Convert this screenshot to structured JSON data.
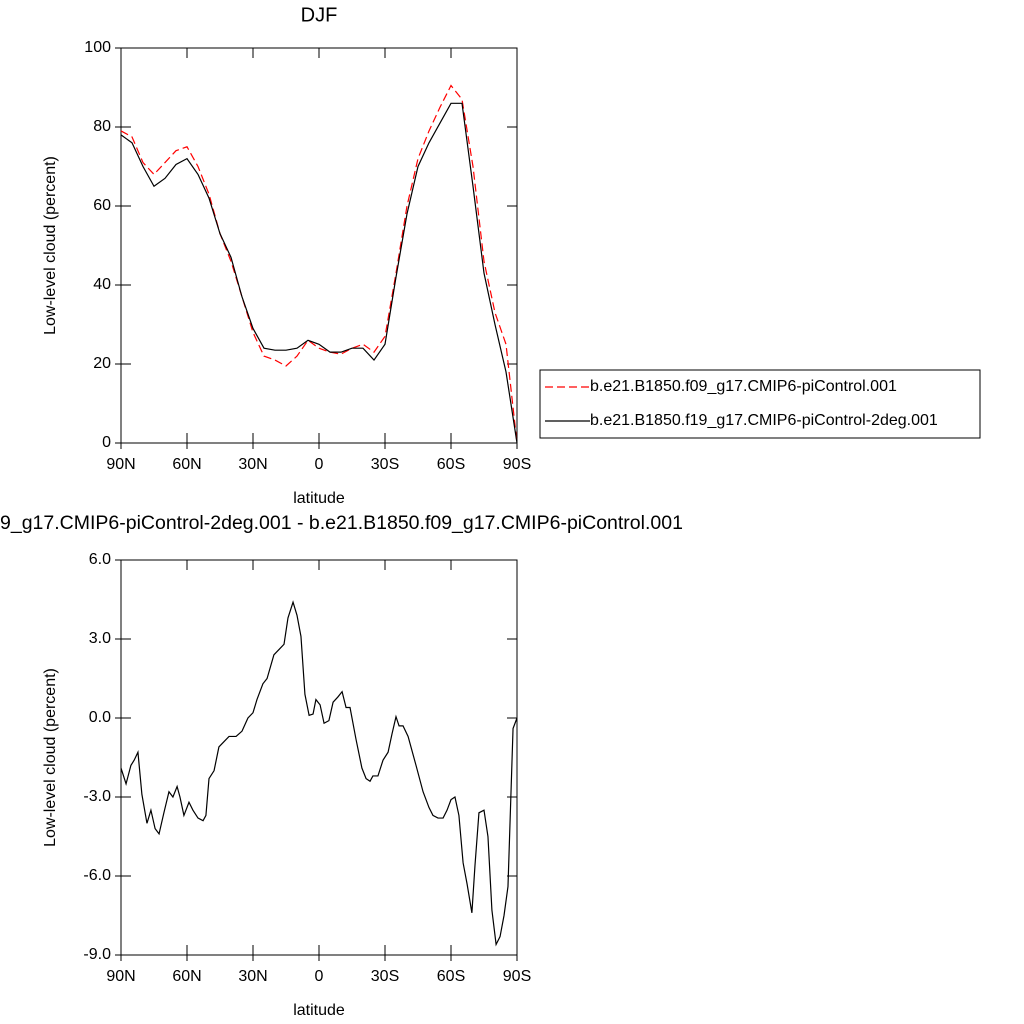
{
  "chart_data": [
    {
      "type": "line",
      "title": "DJF",
      "x_label": "latitude",
      "y_label": "Low-level cloud (percent)",
      "x": [
        90,
        85,
        80,
        75,
        70,
        65,
        60,
        55,
        50,
        45,
        40,
        35,
        30,
        25,
        20,
        15,
        10,
        5,
        0,
        -5,
        -10,
        -15,
        -20,
        -25,
        -30,
        -35,
        -40,
        -45,
        -50,
        -55,
        -60,
        -65,
        -70,
        -75,
        -80,
        -85,
        -90
      ],
      "series": [
        {
          "name": "b.e21.B1850.f09_g17.CMIP6-piControl.001",
          "color": "#ff0000",
          "linestyle": "dashed",
          "values": [
            79,
            77.5,
            71,
            68,
            71,
            74,
            75,
            70,
            63,
            53,
            46,
            37,
            28,
            22,
            21,
            19.5,
            22,
            26,
            24,
            23,
            22.5,
            24,
            25,
            23,
            27,
            43,
            60,
            72,
            79,
            85,
            90.5,
            87,
            70,
            46,
            33,
            25,
            0
          ]
        },
        {
          "name": "b.e21.B1850.f19_g17.CMIP6-piControl-2deg.001",
          "color": "#000000",
          "linestyle": "solid",
          "values": [
            78,
            76,
            70,
            65,
            67,
            70.5,
            72,
            68,
            62,
            53,
            47,
            37,
            29,
            24,
            23.5,
            23.5,
            24,
            26,
            25,
            23,
            23,
            24,
            24,
            21,
            25,
            42,
            58,
            70,
            76,
            81,
            86,
            86,
            65,
            43,
            30,
            18,
            0
          ]
        }
      ],
      "xlim": [
        90,
        -90
      ],
      "xticks": [
        {
          "value": 90,
          "label": "90N"
        },
        {
          "value": 60,
          "label": "60N"
        },
        {
          "value": 30,
          "label": "30N"
        },
        0,
        {
          "value": -30,
          "label": "30S"
        },
        {
          "value": -60,
          "label": "60S"
        },
        {
          "value": -90,
          "label": "90S"
        }
      ],
      "ylim": [
        0,
        100
      ],
      "yticks": [
        0,
        20,
        40,
        60,
        80,
        100
      ],
      "legend": "right"
    },
    {
      "type": "line",
      "title": "9_g17.CMIP6-piControl-2deg.001 - b.e21.B1850.f09_g17.CMIP6-piControl.001",
      "x_label": "latitude",
      "y_label": "Low-level cloud (percent)",
      "x": [
        90,
        87.7,
        85.5,
        84,
        82.3,
        80.5,
        78.2,
        76.4,
        74.5,
        72.7,
        70.5,
        68.2,
        66.4,
        64.5,
        63.2,
        61.4,
        59.1,
        57.3,
        55,
        52.7,
        51.4,
        50,
        47.7,
        45.5,
        43.2,
        40.9,
        37.7,
        35,
        32.3,
        30,
        28.2,
        25.5,
        23.6,
        20.5,
        18.2,
        15.9,
        14.1,
        11.8,
        10,
        8.2,
        6.4,
        4.5,
        2.7,
        1.4,
        -0.5,
        -2.3,
        -4.5,
        -6.4,
        -8.6,
        -10.5,
        -12.3,
        -14.1,
        -16.8,
        -19.5,
        -21.4,
        -23.2,
        -24.5,
        -26.8,
        -29.1,
        -31.4,
        -33.2,
        -35,
        -36.4,
        -38.2,
        -40.5,
        -44.1,
        -47.3,
        -50,
        -51.8,
        -54.1,
        -56.4,
        -58.2,
        -60,
        -61.8,
        -63.6,
        -65.5,
        -67.3,
        -69.5,
        -70.9,
        -72.7,
        -75,
        -76.8,
        -78.6,
        -80.5,
        -82.3,
        -84.1,
        -85.9,
        -88.2,
        -90
      ],
      "series": [
        {
          "color": "#000000",
          "linestyle": "solid",
          "values": [
            -1.9,
            -2.5,
            -1.8,
            -1.6,
            -1.3,
            -2.9,
            -4.0,
            -3.5,
            -4.2,
            -4.4,
            -3.6,
            -2.8,
            -3.0,
            -2.6,
            -3.0,
            -3.7,
            -3.2,
            -3.5,
            -3.8,
            -3.9,
            -3.7,
            -2.3,
            -2.0,
            -1.1,
            -0.9,
            -0.7,
            -0.7,
            -0.5,
            0.0,
            0.2,
            0.7,
            1.3,
            1.5,
            2.4,
            2.6,
            2.8,
            3.8,
            4.4,
            3.9,
            3.1,
            0.9,
            0.1,
            0.15,
            0.7,
            0.5,
            -0.2,
            -0.1,
            0.6,
            0.8,
            1.0,
            0.4,
            0.4,
            -0.8,
            -1.9,
            -2.3,
            -2.4,
            -2.2,
            -2.2,
            -1.6,
            -1.3,
            -0.6,
            0.05,
            -0.3,
            -0.3,
            -0.7,
            -1.8,
            -2.8,
            -3.4,
            -3.7,
            -3.8,
            -3.8,
            -3.5,
            -3.1,
            -3.0,
            -3.7,
            -5.5,
            -6.3,
            -7.4,
            -5.6,
            -3.6,
            -3.5,
            -4.5,
            -7.3,
            -8.6,
            -8.3,
            -7.5,
            -6.4,
            -0.4,
            0.0
          ]
        }
      ],
      "xlim": [
        90,
        -90
      ],
      "xticks": [
        {
          "value": 90,
          "label": "90N"
        },
        {
          "value": 60,
          "label": "60N"
        },
        {
          "value": 30,
          "label": "30N"
        },
        0,
        {
          "value": -30,
          "label": "30S"
        },
        {
          "value": -60,
          "label": "60S"
        },
        {
          "value": -90,
          "label": "90S"
        }
      ],
      "ylim": [
        -9,
        6
      ],
      "yticks": [
        {
          "value": -9,
          "label": "-9.0"
        },
        {
          "value": -6,
          "label": "-6.0"
        },
        {
          "value": -3,
          "label": "-3.0"
        },
        {
          "value": 0,
          "label": "0.0"
        },
        {
          "value": 3,
          "label": "3.0"
        },
        {
          "value": 6,
          "label": "6.0"
        }
      ]
    }
  ]
}
